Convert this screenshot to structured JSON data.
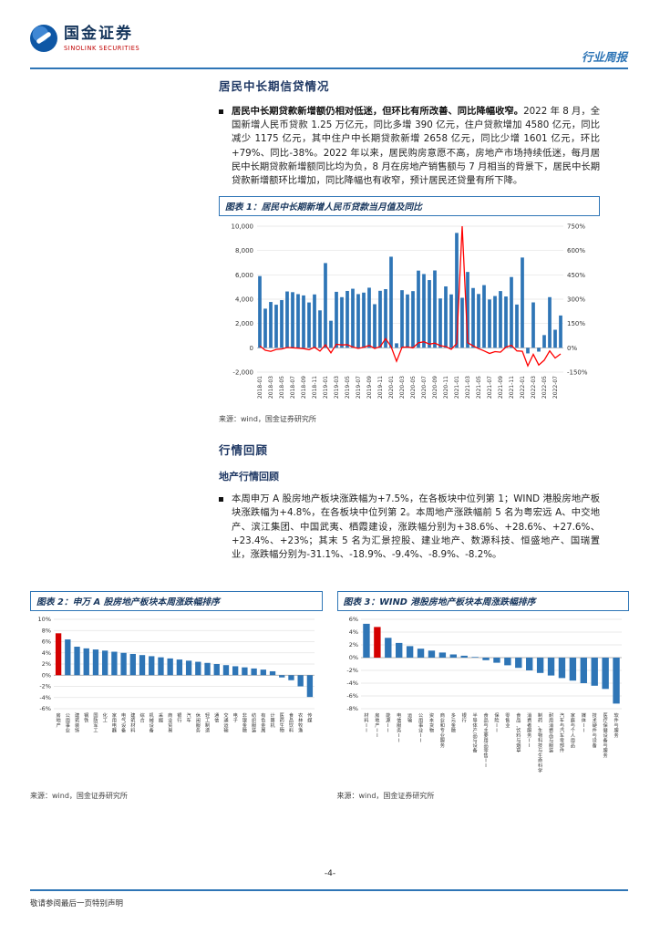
{
  "header": {
    "logo_cn": "国金证券",
    "logo_en": "SINOLINK SECURITIES",
    "report_type": "行业周报"
  },
  "section1": {
    "title": "居民中长期信贷情况",
    "bullet_bold": "居民中长期贷款新增额仍相对低迷，但环比有所改善、同比降幅收窄。",
    "bullet_text": "2022 年 8 月，全国新增人民币贷款 1.25 万亿元，同比多增 390 亿元，住户贷款增加 4580 亿元，同比减少 1175 亿元，其中住户中长期贷款新增 2658 亿元，同比少增 1601 亿元，环比+79%、同比-38%。2022 年以来，居民购房意愿不高，房地产市场持续低迷，每月居民中长期贷款新增额同比均为负，8 月在房地产销售额与 7 月相当的背景下，居民中长期贷款新增额环比增加，同比降幅也有收窄，预计居民还贷量有所下降。"
  },
  "figure1": {
    "title": "图表 1：居民中长期新增人民币贷款当月值及同比",
    "source": "来源：wind，国金证券研究所"
  },
  "section2": {
    "title": "行情回顾",
    "subtitle": "地产行情回顾",
    "bullet_text": "本周申万 A 股房地产板块涨跌幅为+7.5%，在各板块中位列第 1；WIND 港股房地产板块涨跌幅为+4.8%，在各板块中位列第 2。本周地产涨跌幅前 5 名为粤宏远 A、中交地产、滨江集团、中国武夷、栖霞建设，涨跌幅分别为+38.6%、+28.6%、+27.6%、+23.4%、+23%；其末 5 名为汇景控股、建业地产、数源科技、恒盛地产、国瑞置业，涨跌幅分别为-31.1%、-18.9%、-9.4%、-8.9%、-8.2%。"
  },
  "figure2": {
    "title": "图表 2：申万 A 股房地产板块本周涨跌幅排序",
    "source": "来源：wind，国金证券研究所"
  },
  "figure3": {
    "title": "图表 3：WIND 港股房地产板块本周涨跌幅排序",
    "source": "来源：wind，国金证券研究所"
  },
  "footer": {
    "page": "-4-",
    "disclaimer": "敬请参阅最后一页特别声明"
  },
  "colors": {
    "accent_blue": "#2e75b6",
    "navy": "#17365d",
    "bar_blue": "#2e75b6",
    "highlight_red": "#d40000",
    "line_red": "#ff0000"
  },
  "chart_data": [
    {
      "id": "chart1",
      "type": "bar",
      "subtype": "bar+line dual axis",
      "title": "居民中长期新增人民币贷款当月值及同比",
      "x": [
        "2018-01",
        "2018-02",
        "2018-03",
        "2018-04",
        "2018-05",
        "2018-06",
        "2018-07",
        "2018-08",
        "2018-09",
        "2018-10",
        "2018-11",
        "2018-12",
        "2019-01",
        "2019-02",
        "2019-03",
        "2019-04",
        "2019-05",
        "2019-06",
        "2019-07",
        "2019-08",
        "2019-09",
        "2019-10",
        "2019-11",
        "2019-12",
        "2020-01",
        "2020-02",
        "2020-03",
        "2020-04",
        "2020-05",
        "2020-06",
        "2020-07",
        "2020-08",
        "2020-09",
        "2020-10",
        "2020-11",
        "2020-12",
        "2021-01",
        "2021-02",
        "2021-03",
        "2021-04",
        "2021-05",
        "2021-06",
        "2021-07",
        "2021-08",
        "2021-09",
        "2021-10",
        "2021-11",
        "2021-12",
        "2022-01",
        "2022-02",
        "2022-03",
        "2022-04",
        "2022-05",
        "2022-06",
        "2022-07",
        "2022-08"
      ],
      "series": [
        {
          "name": "居民中长期新增人民币贷款当月值（亿元）",
          "type": "bar",
          "axis": "left",
          "values": [
            5900,
            3220,
            3770,
            3543,
            3923,
            4634,
            4576,
            4415,
            4309,
            3730,
            4391,
            3079,
            6969,
            2226,
            4605,
            4165,
            4677,
            4858,
            4417,
            4540,
            4943,
            3587,
            4689,
            4824,
            7491,
            371,
            4738,
            4389,
            4662,
            6349,
            6067,
            5571,
            6362,
            4059,
            5049,
            4392,
            9448,
            4113,
            6239,
            4918,
            4426,
            5156,
            3974,
            4259,
            4667,
            4221,
            5821,
            3558,
            7424,
            -459,
            3735,
            -313,
            1047,
            4167,
            1486,
            2658
          ]
        },
        {
          "name": "同比",
          "type": "line",
          "axis": "right",
          "values": [
            12,
            -15,
            -22,
            -10,
            -7,
            2,
            0,
            -2,
            -5,
            -12,
            3,
            -20,
            18.1,
            -30.9,
            22.2,
            17.6,
            19.2,
            4.8,
            -3.5,
            2.8,
            14.7,
            -3.8,
            6.8,
            56.7,
            7.5,
            -83.3,
            2.9,
            5.4,
            -0.3,
            30.7,
            37.4,
            22.7,
            28.7,
            13.2,
            7.7,
            -9.0,
            26.1,
            750,
            31.7,
            12.1,
            -5.1,
            -18.8,
            -34.5,
            -23.6,
            -26.6,
            4.0,
            15.3,
            -19.0,
            -21.4,
            -111.2,
            -40.1,
            -106.4,
            -76.3,
            -19.2,
            -62.6,
            -37.6
          ]
        }
      ],
      "left_axis": {
        "min": -2000,
        "max": 10000,
        "step": 2000
      },
      "right_axis": {
        "min": -150,
        "max": 750,
        "step": 150,
        "unit": "%"
      },
      "grid": true,
      "bar_color": "#2e75b6",
      "line_color": "#ff0000"
    },
    {
      "id": "chart2",
      "type": "bar",
      "title": "申万 A 股房地产板块本周涨跌幅排序",
      "ylabel": "涨跌幅(%)",
      "ylim": [
        -6,
        10
      ],
      "ystep": 2,
      "highlight_index": 0,
      "bar_color": "#2e75b6",
      "highlight_color": "#d40000",
      "categories": [
        "房地产",
        "公用事业",
        "建筑装饰",
        "钢铁",
        "国防军工",
        "化工",
        "家用电器",
        "电气设备",
        "建筑材料",
        "综合",
        "机械设备",
        "采掘",
        "商业贸易",
        "银行",
        "汽车",
        "休闲服务",
        "轻工制造",
        "通信",
        "交通运输",
        "电子",
        "非银金融",
        "纺织服装",
        "有色金属",
        "计算机",
        "医药生物",
        "食品饮料",
        "农林牧渔",
        "传媒"
      ],
      "values": [
        7.5,
        6.4,
        5.1,
        4.8,
        4.6,
        4.4,
        4.2,
        4.0,
        3.8,
        3.6,
        3.4,
        3.2,
        3.0,
        2.8,
        2.6,
        2.4,
        2.2,
        2.0,
        1.8,
        1.6,
        1.4,
        1.2,
        1.0,
        0.7,
        -0.4,
        -0.9,
        -2.0,
        -3.9
      ]
    },
    {
      "id": "chart3",
      "type": "bar",
      "title": "WIND 港股房地产板块本周涨跌幅排序",
      "ylabel": "涨跌幅(%)",
      "ylim": [
        -8,
        6
      ],
      "ystep": 2,
      "highlight_index": 1,
      "bar_color": "#2e75b6",
      "highlight_color": "#d40000",
      "categories": [
        "材料II",
        "房地产II",
        "能源II",
        "电信服务II",
        "运输",
        "公用事业II",
        "资本货物",
        "商业和专业服务",
        "多元金融",
        "银行",
        "半导体产品与设备",
        "食品与主要用品零售II",
        "保险II",
        "零售业",
        "食品、饮料与烟草",
        "消费者服务II",
        "制药、生物科技与生命科学",
        "耐用消费品与服装",
        "汽车与汽车零部件",
        "家庭与个人用品",
        "媒体II",
        "技术硬件与设备",
        "医疗保健设备与服务",
        "软件与服务"
      ],
      "values": [
        5.3,
        4.8,
        3.1,
        2.3,
        1.8,
        1.4,
        1.1,
        0.8,
        0.5,
        0.3,
        0.1,
        -0.4,
        -0.8,
        -1.2,
        -1.6,
        -2.0,
        -2.4,
        -2.8,
        -3.2,
        -3.6,
        -4.0,
        -4.4,
        -4.9,
        -7.2
      ]
    }
  ]
}
